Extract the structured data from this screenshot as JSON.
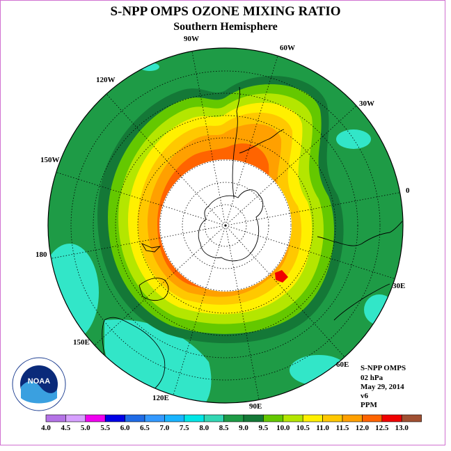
{
  "title": "S-NPP OMPS OZONE MIXING RATIO",
  "subtitle": "Southern Hemisphere",
  "longitude_labels": [
    "90W",
    "60W",
    "30W",
    "0",
    "30E",
    "60E",
    "90E",
    "120E",
    "150E",
    "180",
    "150W",
    "120W"
  ],
  "info": {
    "instrument": "S-NPP OMPS",
    "pressure": "02 hPa",
    "date": "May 29, 2014",
    "version": "v6",
    "units": "PPM"
  },
  "logo_text": "NOAA",
  "colorbar": {
    "labels": [
      "4.0",
      "4.5",
      "5.0",
      "5.5",
      "6.0",
      "6.5",
      "7.0",
      "7.5",
      "8.0",
      "8.5",
      "9.0",
      "9.5",
      "10.0",
      "10.5",
      "11.0",
      "11.5",
      "12.0",
      "12.5",
      "13.0"
    ],
    "colors": [
      "#b473e6",
      "#d7a0ff",
      "#f000f0",
      "#0000e6",
      "#1f6be6",
      "#3399ff",
      "#19b4ff",
      "#00e6e6",
      "#32d7b4",
      "#1e9b46",
      "#147837",
      "#64c800",
      "#b4e600",
      "#fff000",
      "#ffc800",
      "#ffa000",
      "#ff6400",
      "#f00000",
      "#a05032"
    ]
  }
}
